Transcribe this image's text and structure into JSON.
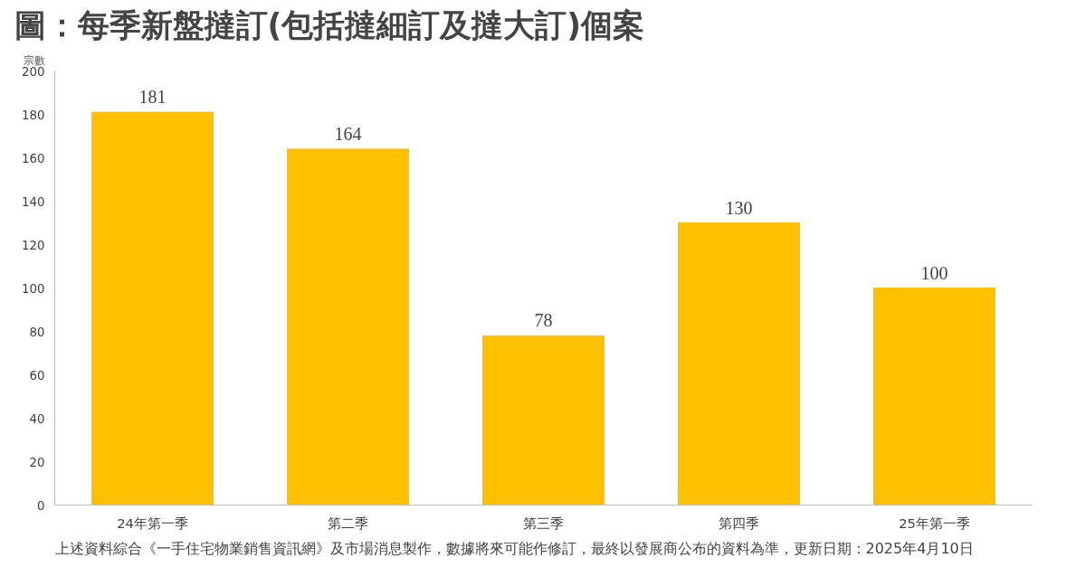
{
  "chart_data": {
    "type": "bar",
    "title": "圖：每季新盤撻訂(包括撻細訂及撻大訂)個案",
    "ylabel": "宗數",
    "categories": [
      "24年第一季",
      "第二季",
      "第三季",
      "第四季",
      "25年第一季"
    ],
    "values": [
      181,
      164,
      78,
      130,
      100
    ],
    "color": "#ffc000",
    "ylim": [
      0,
      200
    ],
    "yticks": [
      0,
      20,
      40,
      60,
      80,
      100,
      120,
      140,
      160,
      180,
      200
    ],
    "grid": false,
    "data_labels": true,
    "annotations": [
      "上述資料綜合《一手住宅物業銷售資訊網》及市場消息製作，數據將來可能作修訂，最終以發展商公布的資料為準，更新日期：2025年4月10日"
    ]
  }
}
